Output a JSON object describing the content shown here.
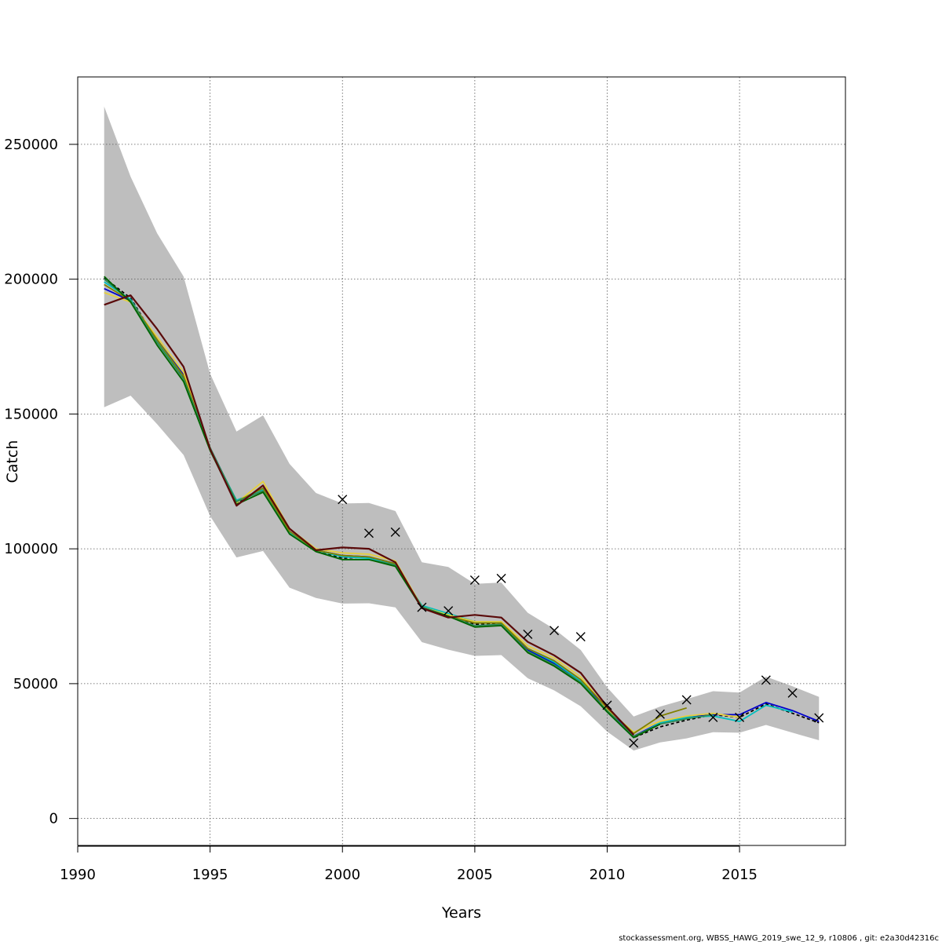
{
  "chart_data": {
    "type": "line",
    "title": "",
    "xlabel": "Years",
    "ylabel": "Catch",
    "xlim": [
      1990,
      2019
    ],
    "ylim": [
      -10000,
      275000
    ],
    "grid": true,
    "x_ticks": [
      1990,
      1995,
      2000,
      2005,
      2010,
      2015
    ],
    "x_tick_labels": [
      "1990",
      "1995",
      "2000",
      "2005",
      "2010",
      "2015"
    ],
    "y_ticks": [
      0,
      50000,
      100000,
      150000,
      200000,
      250000
    ],
    "y_tick_labels": [
      "0",
      "50000",
      "100000",
      "150000",
      "200000",
      "250000"
    ],
    "band": {
      "color": "#bebebe",
      "x": [
        1991,
        1992,
        1993,
        1994,
        1995,
        1996,
        1997,
        1998,
        1999,
        2000,
        2001,
        2002,
        2003,
        2004,
        2005,
        2006,
        2007,
        2008,
        2009,
        2010,
        2011,
        2012,
        2013,
        2014,
        2015,
        2016,
        2017,
        2018
      ],
      "upper": [
        264000,
        238000,
        217000,
        201000,
        165000,
        143500,
        149500,
        131500,
        120700,
        116800,
        117000,
        114000,
        95000,
        93300,
        87000,
        87500,
        76300,
        70300,
        62500,
        48600,
        37800,
        41500,
        44300,
        47200,
        46700,
        52600,
        49000,
        45100
      ],
      "lower": [
        152500,
        156800,
        146200,
        134800,
        112200,
        96800,
        99200,
        85600,
        81800,
        79700,
        79800,
        78300,
        65400,
        62600,
        60300,
        60600,
        52000,
        47500,
        41600,
        32200,
        25200,
        28200,
        29700,
        32000,
        31800,
        34700,
        31800,
        29000
      ]
    },
    "series": [
      {
        "color": "#000000",
        "dashed": true,
        "x": [
          1991,
          1992,
          1993,
          1994,
          1995,
          1996,
          1997,
          1998,
          1999,
          2000,
          2001,
          2002,
          2003,
          2004,
          2005,
          2006,
          2007,
          2008,
          2009,
          2010,
          2011,
          2012,
          2013,
          2014,
          2015,
          2016,
          2017,
          2018
        ],
        "values": [
          200500,
          193000,
          177000,
          163500,
          137500,
          117000,
          122000,
          106000,
          99500,
          96500,
          97000,
          94000,
          78000,
          75000,
          72000,
          72500,
          62500,
          57000,
          50500,
          40000,
          30000,
          34000,
          36500,
          38500,
          37500,
          42500,
          39000,
          35500
        ]
      },
      {
        "color": "#0000cd",
        "x": [
          1991,
          1992,
          1993,
          1994,
          1995,
          1996,
          1997,
          1998,
          1999,
          2000,
          2001,
          2002,
          2003,
          2004,
          2005,
          2006,
          2007,
          2008,
          2009,
          2010,
          2011,
          2012,
          2013,
          2014,
          2015,
          2016,
          2017,
          2018
        ],
        "values": [
          196500,
          192000,
          177500,
          164500,
          137500,
          117500,
          122500,
          106500,
          99500,
          97500,
          97000,
          94500,
          78000,
          75500,
          72500,
          72500,
          62500,
          57500,
          51000,
          40500,
          30500,
          35500,
          37500,
          38500,
          38500,
          43000,
          40000,
          36000
        ]
      },
      {
        "color": "#00bfbf",
        "x": [
          1991,
          1992,
          1993,
          1994,
          1995,
          1996,
          1997,
          1998,
          1999,
          2000,
          2001,
          2002,
          2003,
          2004,
          2005,
          2006,
          2007,
          2008,
          2009,
          2010,
          2011,
          2012,
          2013,
          2014,
          2015,
          2016,
          2017
        ],
        "values": [
          199000,
          192500,
          177000,
          164000,
          137000,
          118000,
          122000,
          106000,
          99500,
          97000,
          96500,
          94000,
          79000,
          76000,
          73000,
          72500,
          63000,
          58000,
          51000,
          39500,
          30000,
          35500,
          37500,
          38000,
          36000,
          42000,
          39500
        ]
      },
      {
        "color": "#e6d03c",
        "x": [
          1991,
          1992,
          1993,
          1994,
          1995,
          1996,
          1997,
          1998,
          1999,
          2000,
          2001,
          2002,
          2003,
          2004,
          2005,
          2006,
          2007,
          2008,
          2009,
          2010,
          2011,
          2012,
          2013,
          2014,
          2015
        ],
        "values": [
          195000,
          191500,
          178500,
          165500,
          137500,
          117000,
          125000,
          107500,
          100000,
          98500,
          98000,
          95500,
          78500,
          75500,
          73000,
          73000,
          64000,
          59500,
          52500,
          40500,
          32000,
          36000,
          38000,
          39000,
          37500
        ]
      },
      {
        "color": "#808000",
        "x": [
          1991,
          1992,
          1993,
          1994,
          1995,
          1996,
          1997,
          1998,
          1999,
          2000,
          2001,
          2002,
          2003,
          2004,
          2005,
          2006,
          2007,
          2008,
          2009,
          2010,
          2011,
          2012,
          2013
        ],
        "values": [
          198000,
          192000,
          177500,
          164000,
          137000,
          117500,
          122500,
          106500,
          99500,
          97500,
          97000,
          94500,
          78500,
          75000,
          72500,
          72500,
          63000,
          58500,
          51500,
          41000,
          31500,
          38000,
          41000
        ]
      },
      {
        "color": "#2e8b57",
        "x": [
          1991,
          1992,
          1993,
          1994,
          1995,
          1996,
          1997,
          1998,
          1999,
          2000,
          2001,
          2002,
          2003,
          2004,
          2005,
          2006,
          2007,
          2008,
          2009,
          2010,
          2011,
          2012,
          2013,
          2014
        ],
        "values": [
          200000,
          192000,
          176500,
          163000,
          137500,
          117500,
          121500,
          105500,
          99000,
          96000,
          96000,
          94000,
          78500,
          75000,
          71500,
          72000,
          62000,
          57000,
          50500,
          40000,
          30500,
          35000,
          37000,
          38500
        ]
      },
      {
        "color": "#006400",
        "x": [
          1991,
          1992,
          1993,
          1994,
          1995,
          1996,
          1997,
          1998,
          1999,
          2000,
          2001,
          2002,
          2003,
          2004,
          2005,
          2006,
          2007,
          2008,
          2009,
          2010,
          2011,
          2012
        ],
        "values": [
          201000,
          191500,
          175500,
          162000,
          136500,
          116500,
          121000,
          105500,
          99000,
          96000,
          96000,
          93500,
          78000,
          75000,
          71000,
          71500,
          61500,
          56500,
          50000,
          39500,
          30000,
          35000
        ]
      },
      {
        "color": "#5a0a0a",
        "x": [
          1991,
          1992,
          1993,
          1994,
          1995,
          1996,
          1997,
          1998,
          1999,
          2000,
          2001,
          2002,
          2003,
          2004,
          2005,
          2006,
          2007,
          2008,
          2009,
          2010,
          2011
        ],
        "values": [
          190500,
          194000,
          181500,
          167500,
          137000,
          116000,
          123500,
          107500,
          99500,
          100500,
          100000,
          95000,
          78000,
          74500,
          75500,
          74500,
          65500,
          60500,
          54000,
          41500,
          31000
        ]
      }
    ],
    "observed": {
      "marker": "x",
      "color": "#000000",
      "x": [
        2000,
        2001,
        2002,
        2003,
        2004,
        2005,
        2006,
        2007,
        2008,
        2009,
        2010,
        2011,
        2012,
        2013,
        2014,
        2015,
        2016,
        2017,
        2018
      ],
      "values": [
        118300,
        105800,
        106200,
        78300,
        77000,
        88400,
        89000,
        68300,
        69700,
        67400,
        42000,
        28000,
        38700,
        44000,
        37500,
        37500,
        51300,
        46500,
        37300
      ]
    }
  },
  "footer": "stockassessment.org, WBSS_HAWG_2019_swe_12_9, r10806 , git: e2a30d42316c"
}
